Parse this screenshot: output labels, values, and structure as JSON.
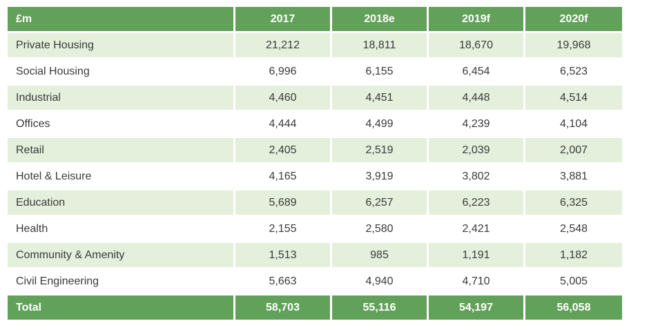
{
  "table": {
    "headers": [
      "£m",
      "2017",
      "2018e",
      "2019f",
      "2020f"
    ],
    "rows": [
      [
        "Private Housing",
        "21,212",
        "18,811",
        "18,670",
        "19,968"
      ],
      [
        "Social Housing",
        "6,996",
        "6,155",
        "6,454",
        "6,523"
      ],
      [
        "Industrial",
        "4,460",
        "4,451",
        "4,448",
        "4,514"
      ],
      [
        "Offices",
        "4,444",
        "4,499",
        "4,239",
        "4,104"
      ],
      [
        "Retail",
        "2,405",
        "2,519",
        "2,039",
        "2,007"
      ],
      [
        "Hotel & Leisure",
        "4,165",
        "3,919",
        "3,802",
        "3,881"
      ],
      [
        "Education",
        "5,689",
        "6,257",
        "6,223",
        "6,325"
      ],
      [
        "Health",
        "2,155",
        "2,580",
        "2,421",
        "2,548"
      ],
      [
        "Community & Amenity",
        "1,513",
        "985",
        "1,191",
        "1,182"
      ],
      [
        "Civil Engineering",
        "5,663",
        "4,940",
        "4,710",
        "5,005"
      ]
    ],
    "total": [
      "Total",
      "58,703",
      "55,116",
      "54,197",
      "56,058"
    ]
  },
  "colors": {
    "header_green": "#62a15a",
    "row_shade": "#e4efdc"
  }
}
